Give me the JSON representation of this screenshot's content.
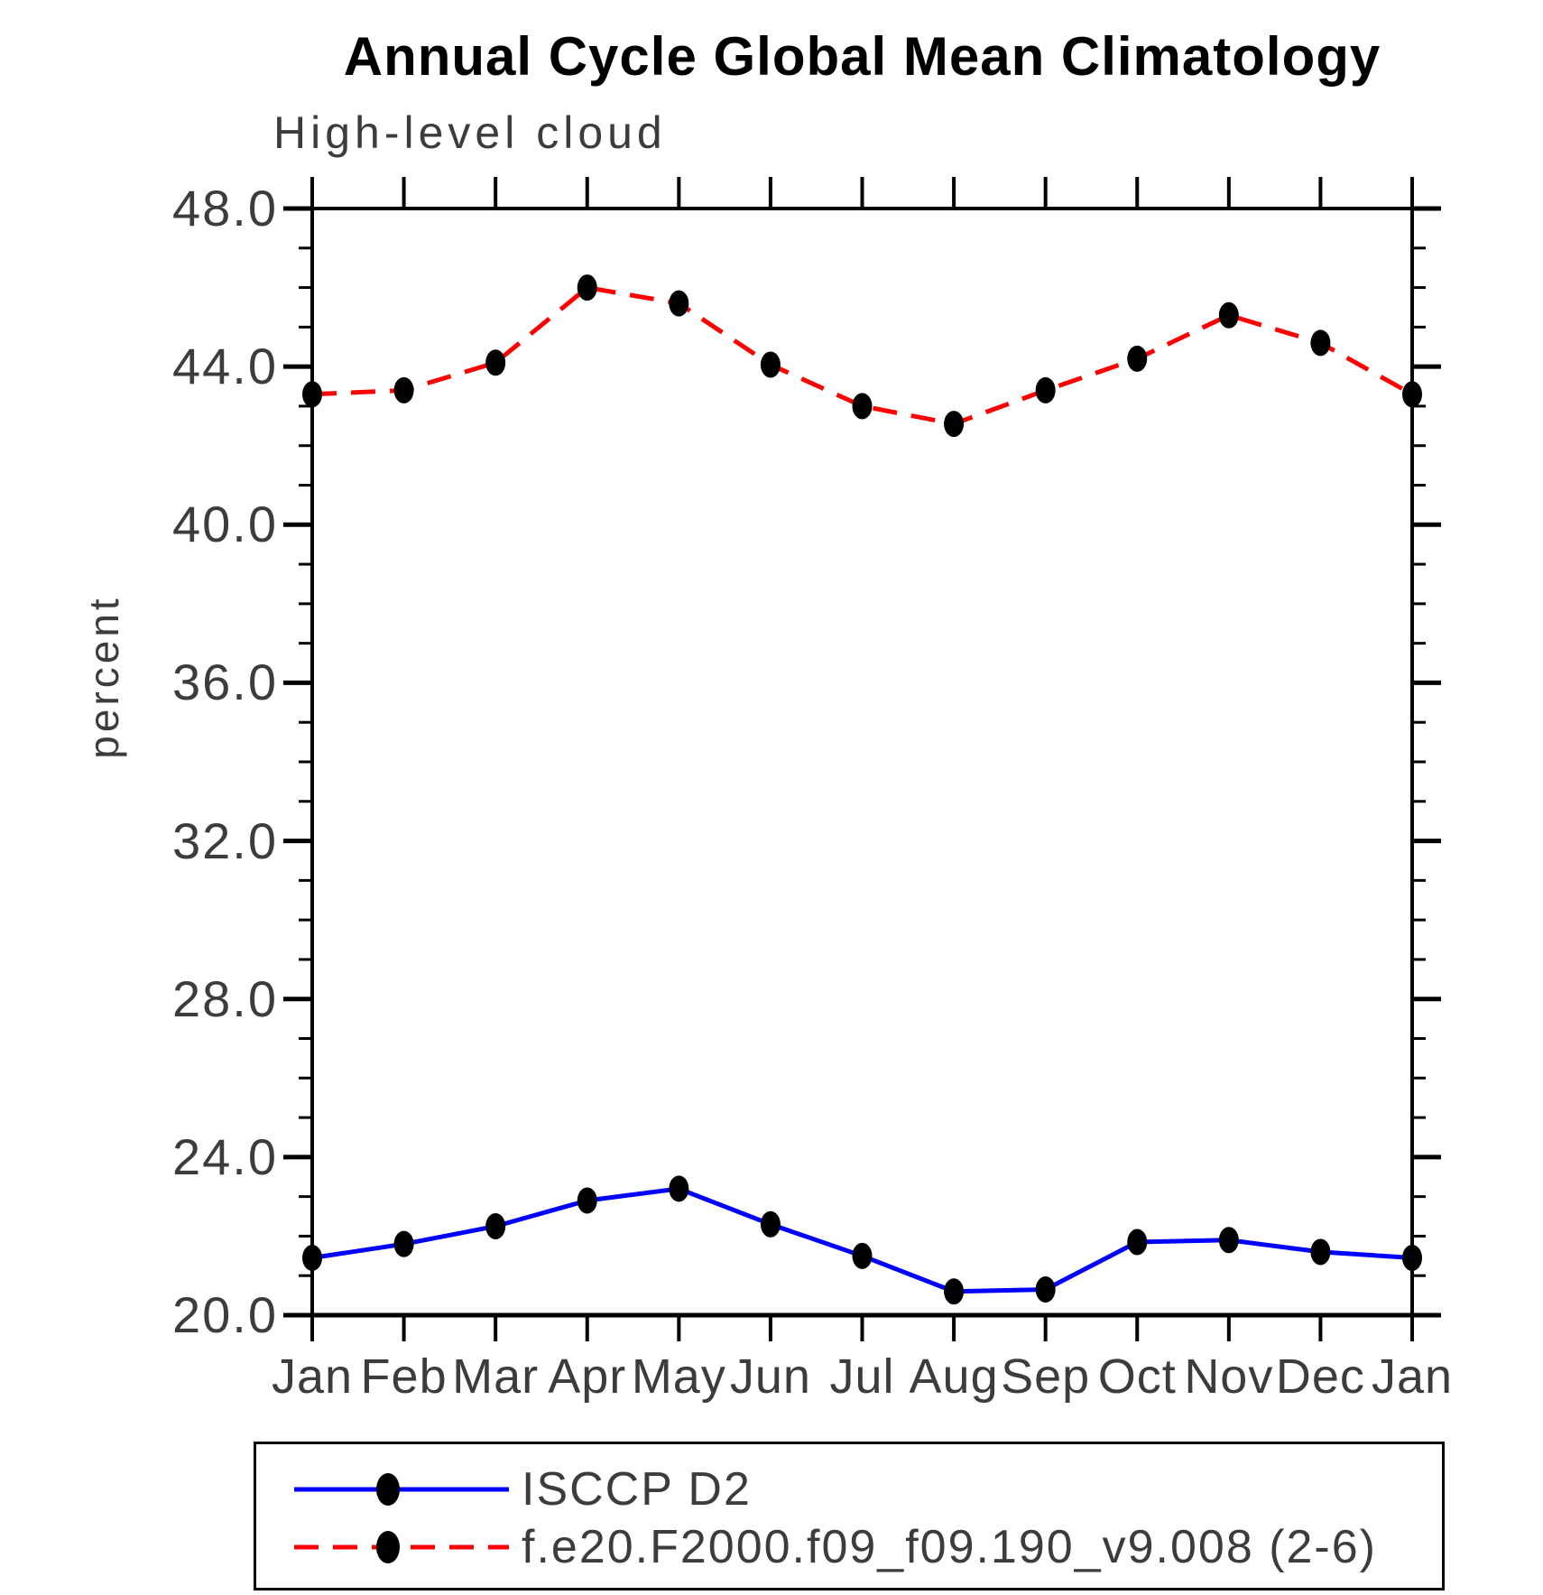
{
  "header": {
    "title": "Annual Cycle Global Mean Climatology",
    "subtitle": "High-level cloud"
  },
  "axes": {
    "y": {
      "label": "percent",
      "tick_labels_major": [
        "20.0",
        "24.0",
        "28.0",
        "32.0",
        "36.0",
        "40.0",
        "44.0",
        "48.0"
      ]
    },
    "x": {
      "tick_labels": [
        "Jan",
        "Feb",
        "Mar",
        "Apr",
        "May",
        "Jun",
        "Jul",
        "Aug",
        "Sep",
        "Oct",
        "Nov",
        "Dec",
        "Jan"
      ]
    }
  },
  "legend": {
    "items": [
      {
        "label": "ISCCP D2",
        "color": "#0000ff",
        "line_style": "solid",
        "marker": "filled-circle"
      },
      {
        "label": "f.e20.F2000.f09_f09.190_v9.008 (2-6)",
        "color": "#ff0000",
        "line_style": "dashed",
        "marker": "filled-circle"
      }
    ]
  },
  "colors": {
    "observation_line": "#0000ff",
    "model_line": "#ff0000",
    "marker": "#000000",
    "axis": "#000000"
  },
  "chart_data": {
    "type": "line",
    "title": "Annual Cycle Global Mean Climatology",
    "subtitle": "High-level cloud",
    "xlabel": "",
    "ylabel": "percent",
    "categories": [
      "Jan",
      "Feb",
      "Mar",
      "Apr",
      "May",
      "Jun",
      "Jul",
      "Aug",
      "Sep",
      "Oct",
      "Nov",
      "Dec",
      "Jan"
    ],
    "series": [
      {
        "name": "ISCCP D2",
        "color": "#0000ff",
        "line_style": "solid",
        "marker": "filled-circle",
        "values": [
          21.45,
          21.8,
          22.25,
          22.9,
          23.2,
          22.3,
          21.5,
          20.6,
          20.65,
          21.85,
          21.9,
          21.6,
          21.45
        ]
      },
      {
        "name": "f.e20.F2000.f09_f09.190_v9.008 (2-6)",
        "color": "#ff0000",
        "line_style": "dashed",
        "marker": "filled-circle",
        "values": [
          43.3,
          43.4,
          44.1,
          46.0,
          45.6,
          44.05,
          43.0,
          42.55,
          43.4,
          44.2,
          45.3,
          44.6,
          43.3
        ]
      }
    ],
    "ylim": [
      20.0,
      48.0
    ],
    "ytick_major_step": 4.0,
    "ytick_minor_step": 1.0,
    "grid": false,
    "legend_position": "bottom-left-box"
  }
}
